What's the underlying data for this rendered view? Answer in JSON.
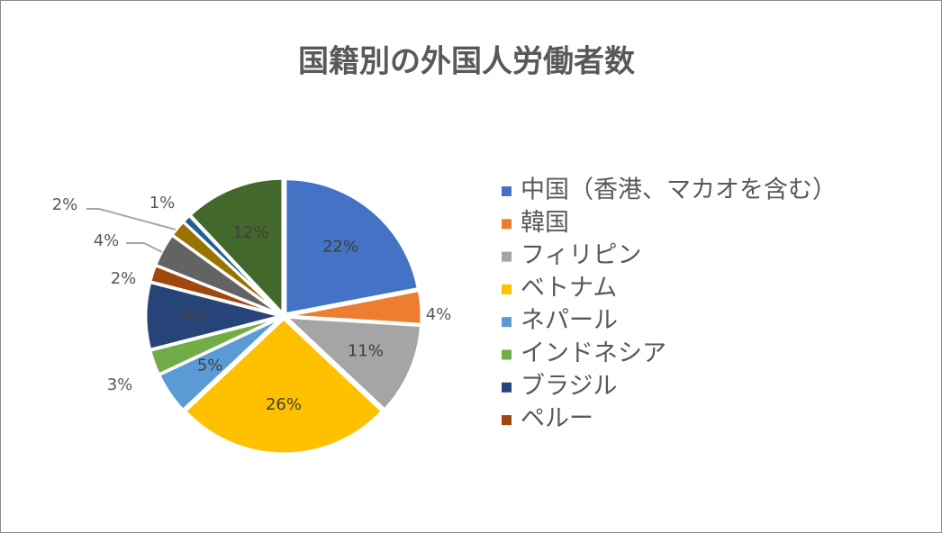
{
  "chart_data": {
    "type": "pie",
    "title": "国籍別の外国人労働者数",
    "categories": [
      "中国（香港、マカオを含む）",
      "韓国",
      "フィリピン",
      "ベトナム",
      "ネパール",
      "インドネシア",
      "ブラジル",
      "ペルー",
      null,
      null,
      null,
      null
    ],
    "values": [
      22,
      4,
      11,
      26,
      5,
      3,
      8,
      2,
      4,
      2,
      1,
      12
    ],
    "value_labels": [
      "22%",
      "4%",
      "11%",
      "26%",
      "5%",
      "3%",
      "8%",
      "2%",
      "4%",
      "2%",
      "1%",
      "12%"
    ],
    "colors": [
      "#4472c4",
      "#ed7d31",
      "#a5a5a5",
      "#ffc000",
      "#5b9bd5",
      "#70ad47",
      "#264478",
      "#9e480e",
      "#636363",
      "#997300",
      "#255e91",
      "#43682b"
    ],
    "legend": "right"
  }
}
